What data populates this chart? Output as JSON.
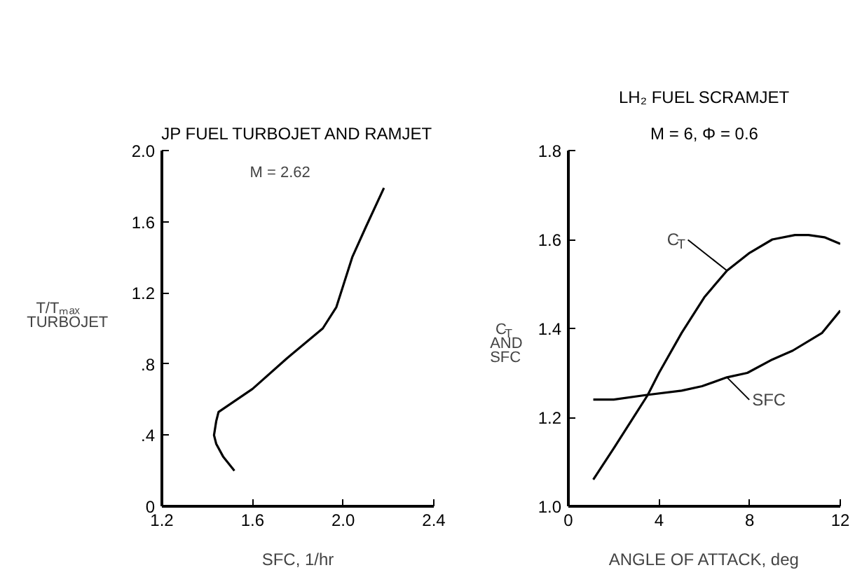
{
  "chart_data": [
    {
      "type": "line",
      "title": "JP FUEL TURBOJET AND RAMJET",
      "subtitle": "M = 2.62",
      "xlabel": "SFC, 1/hr",
      "ylabel": "T/Tₘₐₓ\nTURBOJET",
      "xlim": [
        1.2,
        2.4
      ],
      "ylim": [
        0,
        2.0
      ],
      "xticks": [
        1.2,
        1.6,
        {
          "value": 2.0,
          "label": "2.0"
        },
        2.4
      ],
      "yticks": [
        0,
        {
          "value": 0.4,
          "label": ".4"
        },
        {
          "value": 0.8,
          "label": ".8"
        },
        1.2,
        1.6,
        {
          "value": 2.0,
          "label": "2.0"
        }
      ],
      "series": [
        {
          "color": "#000000",
          "x": [
            1.52,
            1.47,
            1.44,
            1.43,
            1.44,
            1.45,
            1.6,
            1.75,
            1.91,
            1.97,
            2.04,
            2.1,
            2.18
          ],
          "values": [
            0.2,
            0.28,
            0.35,
            0.4,
            0.48,
            0.53,
            0.66,
            0.83,
            1.0,
            1.12,
            1.4,
            1.57,
            1.79
          ]
        }
      ]
    },
    {
      "type": "line",
      "title": "LH₂ FUEL SCRAMJET",
      "subtitle": "M = 6, Φ = 0.6",
      "xlabel": "ANGLE OF ATTACK, deg",
      "ylabel": "C$_{T}$\nAND\nSFC",
      "xlim": [
        0,
        12
      ],
      "ylim": [
        1.0,
        1.8
      ],
      "xticks": [
        0,
        4,
        8,
        12
      ],
      "yticks": [
        {
          "value": 1.0,
          "label": "1.0"
        },
        1.2,
        1.4,
        1.6,
        1.8
      ],
      "series": [
        {
          "name": "C$_{T}$",
          "color": "#000000",
          "x": [
            1.1,
            2,
            3,
            3.5,
            4,
            5,
            6,
            7,
            8,
            9,
            10,
            10.6,
            11.3,
            12
          ],
          "values": [
            1.06,
            1.13,
            1.21,
            1.25,
            1.3,
            1.39,
            1.47,
            1.53,
            1.57,
            1.6,
            1.61,
            1.61,
            1.605,
            1.59
          ]
        },
        {
          "name": "SFC",
          "color": "#000000",
          "x": [
            1.1,
            2,
            3.4,
            5,
            5.9,
            7,
            7.9,
            9,
            9.9,
            11.2,
            12
          ],
          "values": [
            1.24,
            1.24,
            1.25,
            1.26,
            1.27,
            1.29,
            1.3,
            1.33,
            1.35,
            1.39,
            1.44
          ]
        }
      ]
    }
  ]
}
